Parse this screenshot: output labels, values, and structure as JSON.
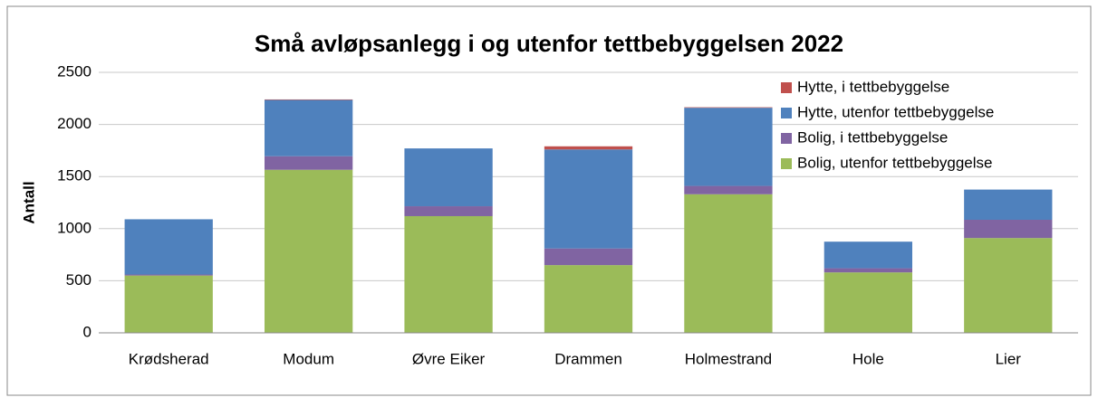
{
  "chart_data": {
    "type": "stacked_bar",
    "title": "Små avløpsanlegg i og utenfor tettbebyggelsen 2022",
    "y_label": "Antall",
    "categories": [
      "Krødsherad",
      "Modum",
      "Øvre Eiker",
      "Drammen",
      "Holmestrand",
      "Hole",
      "Lier"
    ],
    "series": [
      {
        "name": "Bolig, utenfor tettbebyggelse",
        "color": "#9bbb59",
        "values": [
          550,
          1565,
          1120,
          650,
          1330,
          580,
          910
        ]
      },
      {
        "name": "Bolig, i tettbebyggelse",
        "color": "#8064a2",
        "values": [
          10,
          130,
          95,
          160,
          80,
          40,
          175
        ]
      },
      {
        "name": "Hytte, utenfor tettbebyggelse",
        "color": "#4f81bd",
        "values": [
          530,
          540,
          555,
          950,
          750,
          255,
          290
        ]
      },
      {
        "name": "Hytte, i tettbebyggelse",
        "color": "#c0504d",
        "values": [
          0,
          5,
          0,
          30,
          5,
          0,
          0
        ]
      }
    ],
    "ylim": [
      0,
      2500
    ],
    "yticks": [
      0,
      500,
      1000,
      1500,
      2000,
      2500
    ],
    "grid": true,
    "legend": "top-right"
  }
}
